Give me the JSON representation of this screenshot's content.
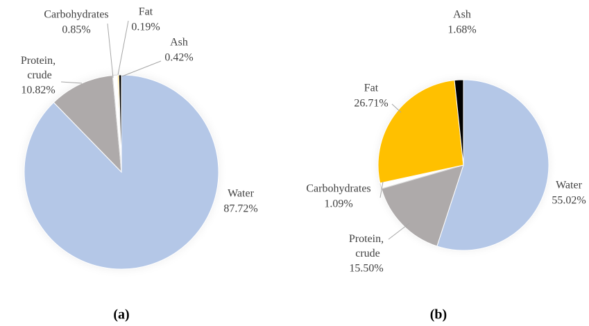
{
  "chart_data": [
    {
      "type": "pie",
      "title": "(a)",
      "categories": [
        "Water",
        "Protein, crude",
        "Carbohydrates",
        "Fat",
        "Ash"
      ],
      "values": [
        87.72,
        10.82,
        0.85,
        0.19,
        0.42
      ],
      "value_labels": [
        "87.72%",
        "10.82%",
        "0.85%",
        "0.19%",
        "0.42%"
      ],
      "colors": [
        "#b4c7e7",
        "#aeaaaa",
        "#ffffff",
        "#ffc000",
        "#000000"
      ]
    },
    {
      "type": "pie",
      "title": "(b)",
      "categories": [
        "Water",
        "Protein, crude",
        "Carbohydrates",
        "Fat",
        "Ash"
      ],
      "values": [
        55.02,
        15.5,
        1.09,
        26.71,
        1.68
      ],
      "value_labels": [
        "55.02%",
        "15.50%",
        "1.09%",
        "26.71%",
        "1.68%"
      ],
      "colors": [
        "#b4c7e7",
        "#aeaaaa",
        "#ffffff",
        "#ffc000",
        "#000000"
      ]
    }
  ]
}
